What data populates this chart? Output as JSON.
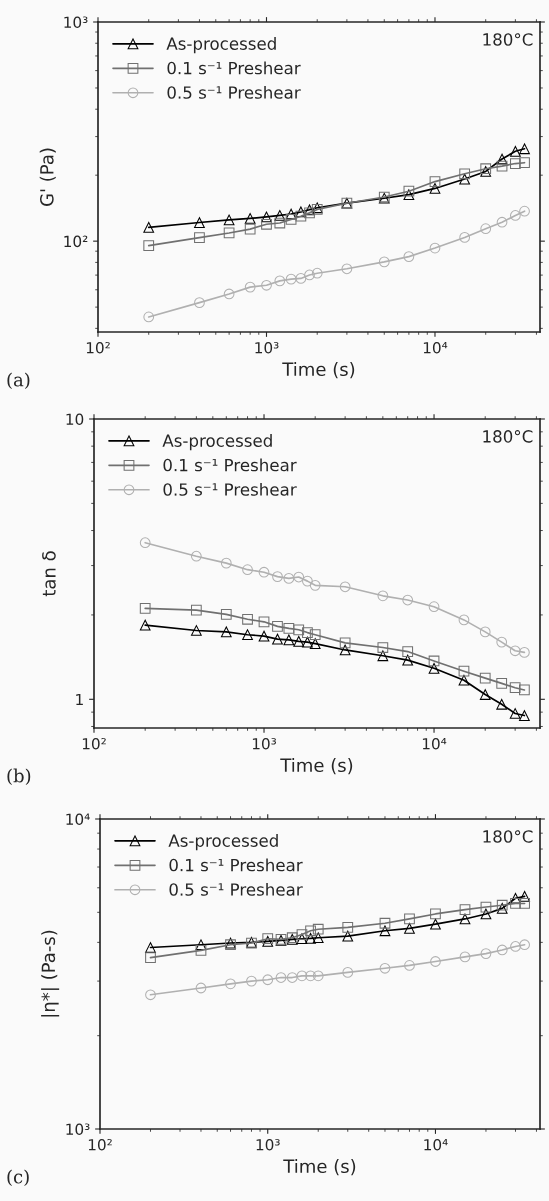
{
  "chart_data": [
    {
      "type": "line",
      "xlabel": "Time (s)",
      "ylabel": "G' (Pa)",
      "log": "xy",
      "legend": "top left",
      "grid": false,
      "xlim": [
        100,
        42000
      ],
      "xticks": [
        {
          "value": 100,
          "label": "10²"
        },
        {
          "value": 1000,
          "label": "10³"
        },
        {
          "value": 10000,
          "label": "10⁴"
        }
      ],
      "ylim": [
        38.5,
        1000
      ],
      "yticks": [
        {
          "value": 100,
          "label": "10²"
        },
        {
          "value": 1000,
          "label": "10³"
        }
      ],
      "annotations": [
        "180°C",
        "(a)"
      ],
      "x": [
        200,
        400,
        600,
        800,
        1000,
        1200,
        1400,
        1600,
        1800,
        2000,
        3000,
        5000,
        7000,
        10000,
        15000,
        20000,
        25000,
        30000,
        34000
      ],
      "series": [
        {
          "name": "As-processed",
          "color": "#000000",
          "marker": "triangle",
          "values": [
            115.6,
            121.6,
            125,
            127,
            129,
            131,
            133,
            136,
            139,
            142,
            149,
            157,
            163,
            174,
            192,
            208,
            237,
            257,
            264
          ]
        },
        {
          "name": "0.1 s⁻¹ Preshear",
          "color": "#707070",
          "marker": "square",
          "values": [
            95.4,
            103.7,
            109,
            113.5,
            119.4,
            121,
            125.6,
            130,
            134.6,
            139.6,
            149,
            159,
            169,
            187,
            203,
            214,
            220,
            226,
            228
          ]
        },
        {
          "name": "0.5 s⁻¹ Preshear",
          "color": "#b0b0b0",
          "marker": "circle",
          "values": [
            45.1,
            52.4,
            57.4,
            61.7,
            62.9,
            65.9,
            67.1,
            67.6,
            70.1,
            71.4,
            74.8,
            80.4,
            85,
            93,
            104,
            114,
            122,
            131,
            137
          ]
        }
      ]
    },
    {
      "type": "line",
      "xlabel": "Time (s)",
      "ylabel": "tan δ",
      "log": "xy",
      "legend": "top left",
      "grid": false,
      "xlim": [
        100,
        42000
      ],
      "xticks": [
        {
          "value": 100,
          "label": "10²"
        },
        {
          "value": 1000,
          "label": "10³"
        },
        {
          "value": 10000,
          "label": "10⁴"
        }
      ],
      "ylim": [
        0.79,
        10
      ],
      "yticks": [
        1,
        10
      ],
      "annotations": [
        "180°C",
        "(b)"
      ],
      "x": [
        200,
        400,
        600,
        800,
        1000,
        1200,
        1400,
        1600,
        1800,
        2000,
        3000,
        5000,
        7000,
        10000,
        15000,
        20000,
        25000,
        30000,
        34000
      ],
      "series": [
        {
          "name": "As-processed",
          "color": "#000000",
          "marker": "triangle",
          "values": [
            1.84,
            1.76,
            1.74,
            1.7,
            1.68,
            1.64,
            1.63,
            1.61,
            1.6,
            1.58,
            1.5,
            1.43,
            1.38,
            1.29,
            1.17,
            1.04,
            0.96,
            0.89,
            0.875
          ]
        },
        {
          "name": "0.1 s⁻¹ Preshear",
          "color": "#707070",
          "marker": "square",
          "values": [
            2.11,
            2.08,
            2.01,
            1.93,
            1.89,
            1.82,
            1.79,
            1.77,
            1.73,
            1.7,
            1.59,
            1.53,
            1.48,
            1.37,
            1.26,
            1.19,
            1.14,
            1.1,
            1.08
          ]
        },
        {
          "name": "0.5 s⁻¹ Preshear",
          "color": "#b0b0b0",
          "marker": "circle",
          "values": [
            3.62,
            3.24,
            3.06,
            2.9,
            2.84,
            2.74,
            2.7,
            2.73,
            2.64,
            2.55,
            2.52,
            2.34,
            2.26,
            2.14,
            1.92,
            1.74,
            1.6,
            1.49,
            1.47
          ]
        }
      ]
    },
    {
      "type": "line",
      "xlabel": "Time (s)",
      "ylabel": "|η*| (Pa-s)",
      "log": "xy",
      "legend": "top left",
      "grid": false,
      "xlim": [
        100,
        42000
      ],
      "xticks": [
        {
          "value": 100,
          "label": "10²"
        },
        {
          "value": 1000,
          "label": "10³"
        },
        {
          "value": 10000,
          "label": "10⁴"
        }
      ],
      "ylim": [
        1000,
        10000
      ],
      "yticks": [
        {
          "value": 1000,
          "label": "10³"
        },
        {
          "value": 10000,
          "label": "10⁴"
        }
      ],
      "annotations": [
        "180°C",
        "(c)"
      ],
      "x": [
        200,
        400,
        600,
        800,
        1000,
        1200,
        1400,
        1600,
        1800,
        2000,
        3000,
        5000,
        7000,
        10000,
        15000,
        20000,
        25000,
        30000,
        34000
      ],
      "series": [
        {
          "name": "As-processed",
          "color": "#000000",
          "marker": "triangle",
          "values": [
            3850,
            3930,
            3980,
            4000,
            4030,
            4060,
            4090,
            4110,
            4120,
            4140,
            4190,
            4360,
            4440,
            4580,
            4760,
            4940,
            5150,
            5550,
            5630
          ]
        },
        {
          "name": "0.1 s⁻¹ Preshear",
          "color": "#707070",
          "marker": "square",
          "values": [
            3570,
            3770,
            3930,
            3980,
            4110,
            4090,
            4140,
            4240,
            4360,
            4410,
            4470,
            4610,
            4760,
            4940,
            5100,
            5200,
            5270,
            5340,
            5340
          ]
        },
        {
          "name": "0.5 s⁻¹ Preshear",
          "color": "#b0b0b0",
          "marker": "circle",
          "values": [
            2710,
            2850,
            2940,
            3000,
            3030,
            3080,
            3080,
            3120,
            3120,
            3120,
            3200,
            3300,
            3370,
            3470,
            3590,
            3680,
            3780,
            3880,
            3930
          ]
        }
      ]
    }
  ]
}
